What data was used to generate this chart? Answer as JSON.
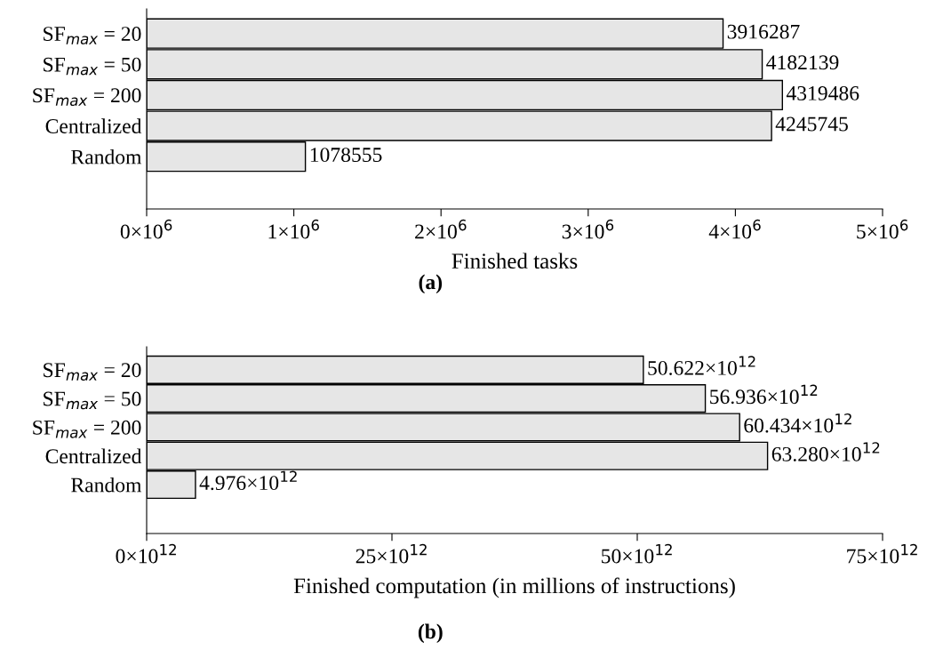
{
  "chart_data": [
    {
      "type": "bar",
      "orientation": "horizontal",
      "categories": [
        "SF$_{max}$ = 20",
        "SF$_{max}$ = 50",
        "SF$_{max}$ = 200",
        "Centralized",
        "Random"
      ],
      "values": [
        3916287,
        4182139,
        4319486,
        4245745,
        1078555
      ],
      "color": "#e6e6e6",
      "data_labels": true,
      "xlim": [
        0,
        5000000
      ],
      "xticks": [
        {
          "value": 0,
          "label": "0×10$^{6}$"
        },
        {
          "value": 1000000,
          "label": "1×10$^{6}$"
        },
        {
          "value": 2000000,
          "label": "2×10$^{6}$"
        },
        {
          "value": 3000000,
          "label": "3×10$^{6}$"
        },
        {
          "value": 4000000,
          "label": "4×10$^{6}$"
        },
        {
          "value": 5000000,
          "label": "5×10$^{6}$"
        }
      ],
      "xlabel": "Finished tasks",
      "annotations": [
        "(a)"
      ],
      "grid": false,
      "legend": false
    },
    {
      "type": "bar",
      "orientation": "horizontal",
      "categories": [
        "SF$_{max}$ = 20",
        "SF$_{max}$ = 50",
        "SF$_{max}$ = 200",
        "Centralized",
        "Random"
      ],
      "values": [
        50622000000000,
        56936000000000,
        60434000000000,
        63280000000000,
        4976000000000
      ],
      "color": "#e6e6e6",
      "value_labels": [
        "50.622×10$^{12}$",
        "56.936×10$^{12}$",
        "60.434×10$^{12}$",
        "63.280×10$^{12}$",
        "4.976×10$^{12}$"
      ],
      "xlim": [
        0,
        75000000000000
      ],
      "xticks": [
        {
          "value": 0,
          "label": "0×10$^{12}$"
        },
        {
          "value": 25000000000000,
          "label": "25×10$^{12}$"
        },
        {
          "value": 50000000000000,
          "label": "50×10$^{12}$"
        },
        {
          "value": 75000000000000,
          "label": "75×10$^{12}$"
        }
      ],
      "xlabel": "Finished computation (in millions of instructions)",
      "annotations": [
        "(b)"
      ],
      "grid": false,
      "legend": false
    }
  ]
}
